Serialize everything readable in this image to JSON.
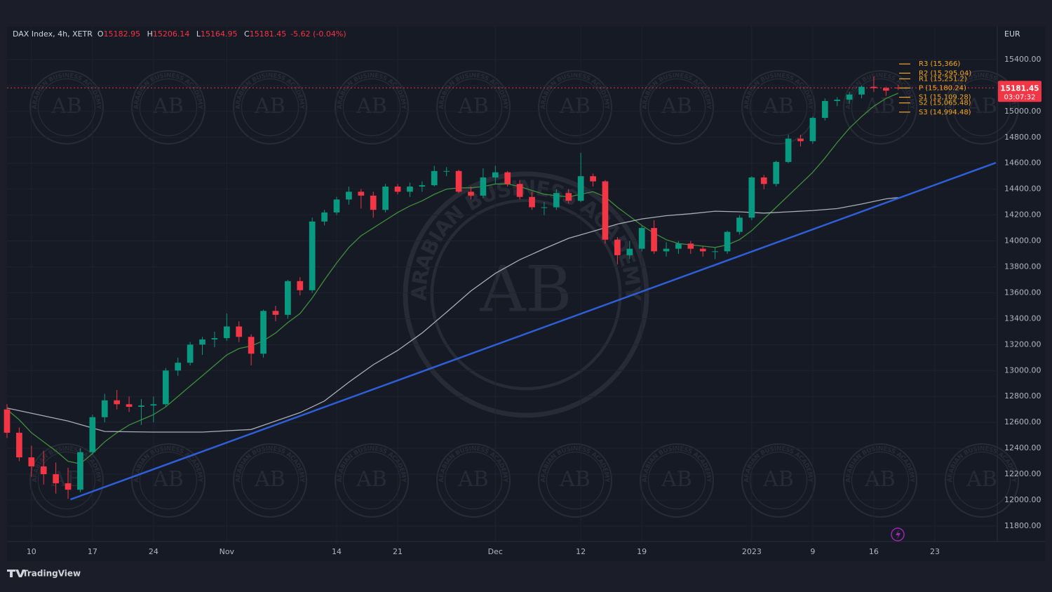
{
  "chart_data": {
    "type": "candlestick",
    "header": {
      "symbol": "DAX Index, 4h, XETR",
      "ohlc_keys": [
        "O",
        "H",
        "L",
        "C"
      ],
      "change": "-5.62 (-0.04%)"
    },
    "currency": "EUR",
    "countdown": "03:07:32",
    "footer": "TradingView",
    "watermark": {
      "initials": "AB",
      "name": "ARABIAN BUSINESS ACADEMY"
    },
    "up_color": "#089981",
    "down_color": "#f23645",
    "grid": true,
    "xlim": [
      0,
      81
    ],
    "ylim": [
      11529,
      15654
    ],
    "xticks": [
      {
        "value": 2,
        "label": "10"
      },
      {
        "value": 7,
        "label": "17"
      },
      {
        "value": 12,
        "label": "24"
      },
      {
        "value": 18,
        "label": "Nov"
      },
      {
        "value": 27,
        "label": "14"
      },
      {
        "value": 32,
        "label": "21"
      },
      {
        "value": 40,
        "label": "Dec"
      },
      {
        "value": 47,
        "label": "12"
      },
      {
        "value": 52,
        "label": "19"
      },
      {
        "value": 61,
        "label": "2023"
      },
      {
        "value": 66,
        "label": "9"
      },
      {
        "value": 71,
        "label": "16"
      },
      {
        "value": 76,
        "label": "23"
      }
    ],
    "yticks": [
      {
        "value": 11800,
        "label": "11800.00"
      },
      {
        "value": 12000,
        "label": "12000.00"
      },
      {
        "value": 12200,
        "label": "12200.00"
      },
      {
        "value": 12400,
        "label": "12400.00"
      },
      {
        "value": 12600,
        "label": "12600.00"
      },
      {
        "value": 12800,
        "label": "12800.00"
      },
      {
        "value": 13000,
        "label": "13000.00"
      },
      {
        "value": 13200,
        "label": "13200.00"
      },
      {
        "value": 13400,
        "label": "13400.00"
      },
      {
        "value": 13600,
        "label": "13600.00"
      },
      {
        "value": 13800,
        "label": "13800.00"
      },
      {
        "value": 14000,
        "label": "14000.00"
      },
      {
        "value": 14200,
        "label": "14200.00"
      },
      {
        "value": 14400,
        "label": "14400.00"
      },
      {
        "value": 14600,
        "label": "14600.00"
      },
      {
        "value": 14800,
        "label": "14800.00"
      },
      {
        "value": 15000,
        "label": "15000.00"
      },
      {
        "value": 15200,
        "label": "15200.00"
      },
      {
        "value": 15400,
        "label": "15400.00"
      }
    ],
    "candles": [
      [
        12700,
        12740,
        12480,
        12520
      ],
      [
        12520,
        12560,
        12300,
        12330
      ],
      [
        12330,
        12420,
        12180,
        12260
      ],
      [
        12260,
        12380,
        12120,
        12200
      ],
      [
        12200,
        12290,
        12050,
        12130
      ],
      [
        12130,
        12250,
        12010,
        12080
      ],
      [
        12080,
        12400,
        12060,
        12370
      ],
      [
        12370,
        12660,
        12350,
        12640
      ],
      [
        12640,
        12820,
        12600,
        12770
      ],
      [
        12770,
        12850,
        12700,
        12740
      ],
      [
        12740,
        12800,
        12680,
        12720
      ],
      [
        12720,
        12780,
        12580,
        12730
      ],
      [
        12730,
        12800,
        12600,
        12740
      ],
      [
        12740,
        13020,
        12720,
        13000
      ],
      [
        13000,
        13100,
        12960,
        13060
      ],
      [
        13060,
        13220,
        13040,
        13200
      ],
      [
        13200,
        13260,
        13120,
        13240
      ],
      [
        13240,
        13300,
        13180,
        13250
      ],
      [
        13250,
        13440,
        13230,
        13340
      ],
      [
        13340,
        13380,
        13220,
        13260
      ],
      [
        13260,
        13280,
        13040,
        13130
      ],
      [
        13130,
        13470,
        13100,
        13460
      ],
      [
        13460,
        13500,
        13380,
        13430
      ],
      [
        13430,
        13700,
        13400,
        13690
      ],
      [
        13690,
        13720,
        13580,
        13620
      ],
      [
        13620,
        14180,
        13600,
        14150
      ],
      [
        14150,
        14240,
        14120,
        14220
      ],
      [
        14220,
        14340,
        14200,
        14320
      ],
      [
        14320,
        14420,
        14280,
        14380
      ],
      [
        14380,
        14400,
        14250,
        14350
      ],
      [
        14350,
        14380,
        14180,
        14240
      ],
      [
        14240,
        14440,
        14220,
        14420
      ],
      [
        14420,
        14440,
        14360,
        14380
      ],
      [
        14380,
        14450,
        14340,
        14420
      ],
      [
        14420,
        14460,
        14380,
        14430
      ],
      [
        14430,
        14580,
        14420,
        14540
      ],
      [
        14540,
        14570,
        14500,
        14540
      ],
      [
        14540,
        14550,
        14370,
        14380
      ],
      [
        14380,
        14420,
        14320,
        14350
      ],
      [
        14350,
        14560,
        14330,
        14490
      ],
      [
        14490,
        14580,
        14440,
        14530
      ],
      [
        14530,
        14540,
        14420,
        14440
      ],
      [
        14440,
        14470,
        14320,
        14340
      ],
      [
        14340,
        14380,
        14240,
        14260
      ],
      [
        14260,
        14300,
        14200,
        14260
      ],
      [
        14260,
        14400,
        14240,
        14370
      ],
      [
        14370,
        14400,
        14290,
        14310
      ],
      [
        14310,
        14680,
        14300,
        14500
      ],
      [
        14500,
        14520,
        14420,
        14460
      ],
      [
        14460,
        14470,
        13980,
        14010
      ],
      [
        14010,
        14030,
        13820,
        13890
      ],
      [
        13890,
        14000,
        13860,
        13940
      ],
      [
        13940,
        14120,
        13920,
        14100
      ],
      [
        14100,
        14160,
        13900,
        13920
      ],
      [
        13920,
        13990,
        13880,
        13940
      ],
      [
        13940,
        14000,
        13900,
        13980
      ],
      [
        13980,
        14000,
        13900,
        13940
      ],
      [
        13940,
        13960,
        13880,
        13920
      ],
      [
        13920,
        13950,
        13860,
        13920
      ],
      [
        13920,
        14080,
        13900,
        14070
      ],
      [
        14070,
        14200,
        14050,
        14180
      ],
      [
        14180,
        14500,
        14160,
        14490
      ],
      [
        14490,
        14510,
        14400,
        14440
      ],
      [
        14440,
        14620,
        14420,
        14610
      ],
      [
        14610,
        14820,
        14600,
        14790
      ],
      [
        14790,
        14820,
        14730,
        14770
      ],
      [
        14770,
        14960,
        14750,
        14950
      ],
      [
        14950,
        15100,
        14930,
        15080
      ],
      [
        15080,
        15110,
        15040,
        15090
      ],
      [
        15090,
        15150,
        15060,
        15130
      ],
      [
        15130,
        15200,
        15100,
        15190
      ],
      [
        15190,
        15270,
        15150,
        15180
      ],
      [
        15180,
        15190,
        15120,
        15160
      ],
      [
        15182.95,
        15206.14,
        15164.95,
        15181.45
      ]
    ],
    "moving_averages": [
      {
        "color": "#3f8f3c",
        "values": [
          12700,
          12620,
          12520,
          12450,
          12380,
          12300,
          12280,
          12360,
          12450,
          12520,
          12580,
          12620,
          12660,
          12720,
          12800,
          12880,
          12960,
          13040,
          13120,
          13170,
          13190,
          13230,
          13290,
          13370,
          13440,
          13560,
          13700,
          13830,
          13950,
          14040,
          14100,
          14160,
          14220,
          14270,
          14310,
          14360,
          14400,
          14410,
          14410,
          14420,
          14440,
          14440,
          14420,
          14390,
          14360,
          14350,
          14340,
          14360,
          14380,
          14340,
          14260,
          14190,
          14120,
          14060,
          14010,
          13980,
          13970,
          13960,
          13950,
          13970,
          14010,
          14080,
          14170,
          14260,
          14350,
          14440,
          14530,
          14640,
          14760,
          14870,
          14960,
          15040,
          15100,
          15140
        ]
      },
      {
        "color": "#a9adb5",
        "x": [
          0,
          5,
          8,
          12,
          16,
          20,
          22,
          24,
          26,
          28,
          30,
          32,
          34,
          36,
          38,
          40,
          42,
          44,
          46,
          48,
          50,
          52,
          54,
          56,
          58,
          60,
          62,
          64,
          66,
          68,
          70,
          72,
          73
        ],
        "values": [
          12710,
          12610,
          12530,
          12525,
          12525,
          12545,
          12610,
          12675,
          12765,
          12910,
          13045,
          13155,
          13290,
          13450,
          13615,
          13750,
          13855,
          13940,
          14020,
          14075,
          14130,
          14170,
          14195,
          14210,
          14230,
          14225,
          14215,
          14225,
          14235,
          14250,
          14285,
          14325,
          14335
        ]
      }
    ],
    "trendline": {
      "color": "#2e5fd6",
      "x": [
        5.2,
        81
      ],
      "values": [
        12005,
        14604
      ]
    },
    "pivot_color": "#f5a623",
    "pivots": [
      {
        "value": 15366,
        "label": "R3 (15,366)"
      },
      {
        "value": 15295.04,
        "label": "R2 (15,295.04)"
      },
      {
        "value": 15251.2,
        "label": "R1 (15,251.2)"
      },
      {
        "value": 15180.24,
        "label": "P (15,180.24)"
      },
      {
        "value": 15109.28,
        "label": "S1 (15,109.28)"
      },
      {
        "value": 15065.48,
        "label": "S2 (15,065.48)"
      },
      {
        "value": 14994.48,
        "label": "S3 (14,994.48)"
      }
    ]
  }
}
